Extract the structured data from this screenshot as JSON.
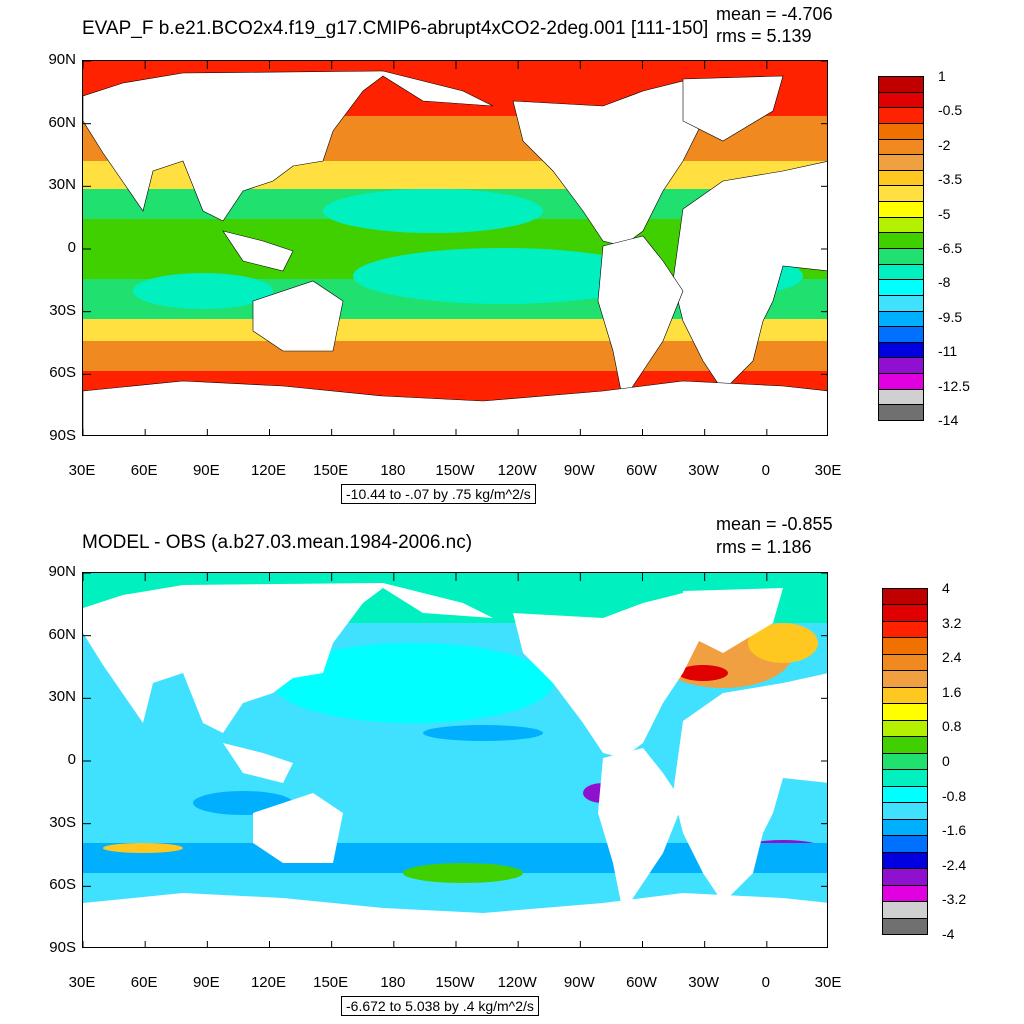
{
  "top": {
    "title": "EVAP_F b.e21.BCO2x4.f19_g17.CMIP6-abrupt4xCO2-2deg.001 [111-150]",
    "mean": "mean = -4.706",
    "rms": "rms = 5.139",
    "subtitle": "-10.44 to -.07 by .75 kg/m^2/s",
    "colorbar": {
      "labels": [
        "1",
        "-0.5",
        "-2",
        "-3.5",
        "-5",
        "-6.5",
        "-8",
        "-9.5",
        "-11",
        "-12.5",
        "-14"
      ],
      "colors": [
        "#c00000",
        "#e00000",
        "#ff2200",
        "#f07000",
        "#f08a20",
        "#f0a040",
        "#ffc820",
        "#ffe040",
        "#ffff00",
        "#b4f000",
        "#40d000",
        "#20e070",
        "#00f0c0",
        "#00ffff",
        "#40e0ff",
        "#00b0ff",
        "#0070ff",
        "#0000e0",
        "#9010d0",
        "#e000e0",
        "#d0d0d0",
        "#707070"
      ]
    }
  },
  "bottom": {
    "title": "MODEL - OBS (a.b27.03.mean.1984-2006.nc)",
    "mean": "mean = -0.855",
    "rms": "rms = 1.186",
    "subtitle": "-6.672 to 5.038 by .4 kg/m^2/s",
    "colorbar": {
      "labels": [
        "4",
        "3.2",
        "2.4",
        "1.6",
        "0.8",
        "0",
        "-0.8",
        "-1.6",
        "-2.4",
        "-3.2",
        "-4"
      ],
      "colors": [
        "#c00000",
        "#e00000",
        "#ff2200",
        "#f07000",
        "#f08a20",
        "#f0a040",
        "#ffc820",
        "#ffff00",
        "#b4f000",
        "#40d000",
        "#20e070",
        "#00f0c0",
        "#00ffff",
        "#40e0ff",
        "#00b0ff",
        "#0070ff",
        "#0000e0",
        "#9010d0",
        "#e000e0",
        "#d0d0d0",
        "#707070"
      ]
    }
  },
  "axes": {
    "lat_labels": [
      "90N",
      "60N",
      "30N",
      "0",
      "30S",
      "60S",
      "90S"
    ],
    "lon_labels": [
      "30E",
      "60E",
      "90E",
      "120E",
      "150E",
      "180",
      "150W",
      "120W",
      "90W",
      "60W",
      "30W",
      "0",
      "30E"
    ]
  },
  "palette": {
    "land": "#ffffff",
    "ocean_top": "#40d000",
    "ocean_bottom": "#40e0ff"
  }
}
